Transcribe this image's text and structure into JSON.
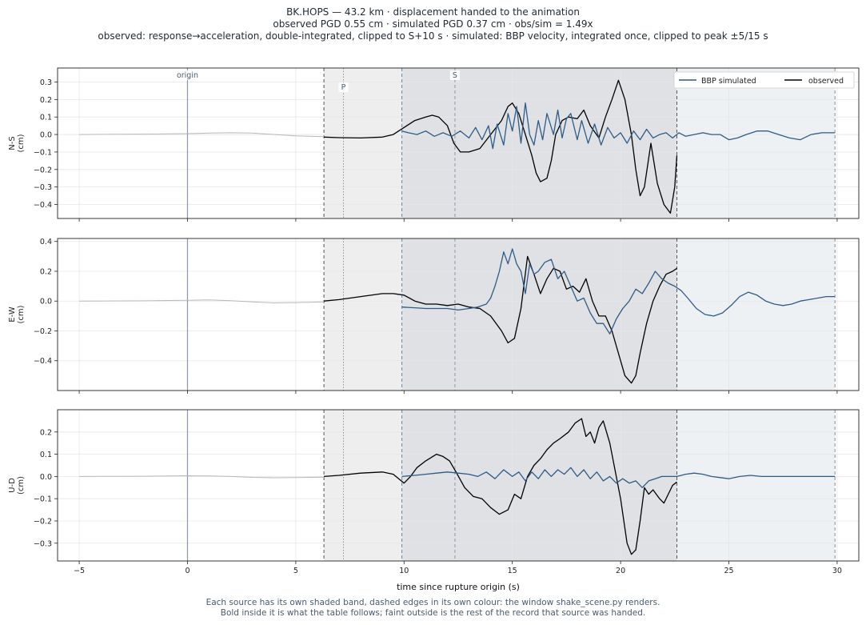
{
  "header": {
    "line1": "BK.HOPS  —  43.2 km   ·   displacement handed to the animation",
    "line2": "observed PGD 0.55 cm   ·   simulated PGD 0.37 cm   ·   obs/sim = 1.49x",
    "line3": "observed: response→acceleration, double-integrated, clipped to S+10 s   ·   simulated: BBP velocity, integrated once, clipped to peak ±5/15 s"
  },
  "footer": {
    "line1": "Each source has its own shaded band, dashed edges in its own colour: the window shake_scene.py renders.",
    "line2": "Bold inside it is what the table follows;   faint outside is the rest of the record that source was handed."
  },
  "colors": {
    "simulated": "#2f5b86",
    "observed": "#000000",
    "faint": "#b4b8bd",
    "band_observed": "#eeeeee",
    "band_overlap": "#dfe1e5",
    "band_simulated": "#eef1f4",
    "marker": "#8d97ab"
  },
  "chart_data": {
    "type": "line",
    "xlabel": "time since rupture origin (s)",
    "xlim": [
      -6,
      31
    ],
    "xticks": [
      -5,
      0,
      5,
      10,
      15,
      20,
      25,
      30
    ],
    "xtick_labels": [
      "−5",
      "0",
      "5",
      "10",
      "15",
      "20",
      "25",
      "30"
    ],
    "markers": [
      {
        "label": "origin",
        "t": 0
      },
      {
        "label": "P",
        "t": 7.2
      },
      {
        "label": "S",
        "t": 12.35
      }
    ],
    "windows": {
      "observed": [
        6.3,
        22.6
      ],
      "simulated": [
        9.9,
        29.9
      ]
    },
    "legend": {
      "position": "top-right",
      "entries": [
        "BBP simulated",
        "observed"
      ]
    },
    "panels": [
      {
        "ylabel": "N-S\n(cm)",
        "ylim": [
          -0.48,
          0.38
        ],
        "yticks": [
          0.3,
          0.2,
          0.1,
          0.0,
          -0.1,
          -0.2,
          -0.3,
          -0.4
        ],
        "ytick_labels": [
          "0.3",
          "0.2",
          "0.1",
          "0.0",
          "−0.1",
          "−0.2",
          "−0.3",
          "−0.4"
        ],
        "series": [
          {
            "name": "observed",
            "role": "faint",
            "x": [
              -5,
              -2,
              0,
              1,
              2,
              3,
              4,
              5,
              6.3
            ],
            "y": [
              0,
              0.002,
              0.005,
              0.008,
              0.01,
              0.008,
              0.0,
              -0.008,
              -0.012
            ]
          },
          {
            "name": "observed",
            "role": "main",
            "x": [
              6.3,
              7,
              8,
              9,
              9.5,
              10,
              10.5,
              11,
              11.3,
              11.6,
              12,
              12.3,
              12.6,
              13,
              13.5,
              14,
              14.5,
              14.8,
              15,
              15.3,
              15.6,
              15.9,
              16.1,
              16.3,
              16.6,
              16.8,
              17,
              17.3,
              17.6,
              18,
              18.3,
              18.6,
              19,
              19.3,
              19.6,
              19.9,
              20.2,
              20.5,
              20.7,
              20.9,
              21.1,
              21.4,
              21.7,
              22,
              22.3,
              22.5,
              22.6
            ],
            "y": [
              -0.015,
              -0.018,
              -0.02,
              -0.015,
              0.0,
              0.04,
              0.08,
              0.1,
              0.11,
              0.1,
              0.05,
              -0.05,
              -0.1,
              -0.1,
              -0.08,
              0.0,
              0.08,
              0.16,
              0.18,
              0.12,
              0.0,
              -0.12,
              -0.22,
              -0.27,
              -0.25,
              -0.15,
              0.0,
              0.08,
              0.1,
              0.09,
              0.14,
              0.05,
              -0.02,
              0.1,
              0.2,
              0.31,
              0.2,
              0.0,
              -0.2,
              -0.35,
              -0.3,
              -0.05,
              -0.28,
              -0.4,
              -0.45,
              -0.3,
              -0.12
            ]
          },
          {
            "name": "BBP simulated",
            "role": "main",
            "x": [
              9.9,
              10.2,
              10.6,
              11,
              11.4,
              11.8,
              12.2,
              12.6,
              13,
              13.3,
              13.6,
              13.9,
              14.1,
              14.3,
              14.6,
              14.8,
              15.0,
              15.2,
              15.4,
              15.6,
              15.8,
              16.0,
              16.2,
              16.4,
              16.6,
              16.9,
              17.1,
              17.3,
              17.5,
              17.7,
              18.0,
              18.2,
              18.5,
              18.8,
              19.1,
              19.4,
              19.7,
              20.0,
              20.3,
              20.6,
              20.9,
              21.2,
              21.5,
              21.8,
              22.1,
              22.4,
              22.7,
              23.0,
              23.4,
              23.8,
              24.2,
              24.6,
              25.0,
              25.4,
              25.8,
              26.3,
              26.8,
              27.3,
              27.8,
              28.3,
              28.8,
              29.3,
              29.9
            ],
            "y": [
              0.02,
              0.01,
              0.0,
              0.02,
              -0.01,
              0.01,
              -0.01,
              0.02,
              -0.02,
              0.04,
              -0.03,
              0.05,
              -0.08,
              0.06,
              -0.06,
              0.12,
              0.02,
              0.16,
              -0.05,
              0.18,
              0.0,
              -0.06,
              0.08,
              -0.03,
              0.12,
              0.0,
              0.14,
              -0.02,
              0.09,
              0.12,
              -0.03,
              0.08,
              -0.05,
              0.06,
              -0.06,
              0.04,
              -0.02,
              0.01,
              -0.05,
              0.02,
              -0.03,
              0.03,
              -0.02,
              0.0,
              0.01,
              -0.02,
              0.01,
              -0.01,
              0.0,
              0.01,
              0.0,
              0.0,
              -0.03,
              -0.02,
              0.0,
              0.02,
              0.02,
              0.0,
              -0.02,
              -0.03,
              0.0,
              0.01,
              0.01
            ]
          }
        ]
      },
      {
        "ylabel": "E-W\n(cm)",
        "ylim": [
          -0.6,
          0.42
        ],
        "yticks": [
          0.4,
          0.2,
          0.0,
          -0.2,
          -0.4
        ],
        "ytick_labels": [
          "0.4",
          "0.2",
          "0.0",
          "−0.2",
          "−0.4"
        ],
        "series": [
          {
            "name": "observed",
            "role": "faint",
            "x": [
              -5,
              -2,
              0,
              1,
              2,
              3,
              4,
              5,
              6.3
            ],
            "y": [
              0,
              0.002,
              0.005,
              0.008,
              0.003,
              -0.005,
              -0.012,
              -0.01,
              -0.005
            ]
          },
          {
            "name": "observed",
            "role": "main",
            "x": [
              6.3,
              7,
              8,
              9,
              9.5,
              10,
              10.5,
              11,
              11.5,
              12,
              12.5,
              13,
              13.5,
              14,
              14.5,
              14.8,
              15.1,
              15.4,
              15.7,
              16.0,
              16.3,
              16.6,
              16.9,
              17.2,
              17.5,
              17.8,
              18.1,
              18.4,
              18.7,
              19.0,
              19.3,
              19.6,
              19.9,
              20.2,
              20.5,
              20.7,
              20.9,
              21.2,
              21.5,
              21.8,
              22.1,
              22.4,
              22.6
            ],
            "y": [
              0.0,
              0.01,
              0.03,
              0.05,
              0.05,
              0.04,
              0.0,
              -0.02,
              -0.02,
              -0.03,
              -0.02,
              -0.04,
              -0.05,
              -0.1,
              -0.2,
              -0.28,
              -0.25,
              -0.05,
              0.3,
              0.18,
              0.05,
              0.15,
              0.22,
              0.2,
              0.08,
              0.1,
              0.06,
              0.15,
              0.0,
              -0.1,
              -0.1,
              -0.2,
              -0.35,
              -0.5,
              -0.55,
              -0.5,
              -0.35,
              -0.15,
              0.0,
              0.1,
              0.18,
              0.2,
              0.22
            ]
          },
          {
            "name": "BBP simulated",
            "role": "main",
            "x": [
              9.9,
              10.5,
              11.0,
              11.5,
              12.0,
              12.5,
              13.0,
              13.4,
              13.8,
              14.0,
              14.2,
              14.4,
              14.6,
              14.8,
              15.0,
              15.2,
              15.4,
              15.6,
              15.8,
              16.0,
              16.2,
              16.5,
              16.8,
              17.1,
              17.4,
              17.7,
              18.0,
              18.3,
              18.6,
              18.9,
              19.2,
              19.5,
              19.8,
              20.1,
              20.4,
              20.7,
              21.0,
              21.3,
              21.6,
              21.9,
              22.2,
              22.5,
              22.8,
              23.1,
              23.5,
              23.9,
              24.3,
              24.7,
              25.1,
              25.5,
              25.9,
              26.3,
              26.7,
              27.1,
              27.5,
              27.9,
              28.3,
              28.7,
              29.1,
              29.5,
              29.9
            ],
            "y": [
              -0.04,
              -0.045,
              -0.05,
              -0.05,
              -0.05,
              -0.06,
              -0.05,
              -0.04,
              -0.02,
              0.02,
              0.1,
              0.2,
              0.33,
              0.25,
              0.35,
              0.25,
              0.2,
              0.05,
              0.25,
              0.18,
              0.2,
              0.26,
              0.28,
              0.15,
              0.2,
              0.1,
              0.0,
              0.02,
              -0.08,
              -0.15,
              -0.15,
              -0.22,
              -0.12,
              -0.05,
              0.0,
              0.08,
              0.05,
              0.12,
              0.2,
              0.15,
              0.12,
              0.1,
              0.07,
              0.02,
              -0.05,
              -0.09,
              -0.1,
              -0.08,
              -0.03,
              0.03,
              0.06,
              0.04,
              0.0,
              -0.02,
              -0.03,
              -0.02,
              0.0,
              0.01,
              0.02,
              0.03,
              0.03
            ]
          }
        ]
      },
      {
        "ylabel": "U-D\n(cm)",
        "ylim": [
          -0.38,
          0.3
        ],
        "yticks": [
          0.2,
          0.1,
          0.0,
          -0.1,
          -0.2,
          -0.3
        ],
        "ytick_labels": [
          "0.2",
          "0.1",
          "0.0",
          "−0.1",
          "−0.2",
          "−0.3"
        ],
        "series": [
          {
            "name": "observed",
            "role": "faint",
            "x": [
              -5,
              -2,
              0,
              1,
              2,
              3,
              4,
              5,
              6.3
            ],
            "y": [
              0,
              0.001,
              0.003,
              0.002,
              0.0,
              -0.004,
              -0.006,
              -0.005,
              -0.003
            ]
          },
          {
            "name": "observed",
            "role": "main",
            "x": [
              6.3,
              7,
              8,
              9,
              9.5,
              10,
              10.3,
              10.6,
              11,
              11.5,
              11.8,
              12.1,
              12.4,
              12.8,
              13.2,
              13.6,
              14.0,
              14.4,
              14.8,
              15.1,
              15.4,
              15.7,
              16.0,
              16.3,
              16.6,
              16.9,
              17.2,
              17.6,
              17.9,
              18.2,
              18.4,
              18.6,
              18.8,
              19.0,
              19.2,
              19.5,
              19.8,
              20.0,
              20.3,
              20.5,
              20.7,
              20.9,
              21.1,
              21.3,
              21.5,
              21.8,
              22.0,
              22.2,
              22.4,
              22.6
            ],
            "y": [
              0.0,
              0.005,
              0.015,
              0.02,
              0.01,
              -0.03,
              0.0,
              0.04,
              0.07,
              0.1,
              0.09,
              0.07,
              0.02,
              -0.05,
              -0.09,
              -0.1,
              -0.14,
              -0.17,
              -0.15,
              -0.08,
              -0.1,
              0.0,
              0.05,
              0.08,
              0.12,
              0.15,
              0.17,
              0.2,
              0.24,
              0.26,
              0.18,
              0.2,
              0.15,
              0.22,
              0.25,
              0.15,
              0.0,
              -0.1,
              -0.3,
              -0.35,
              -0.33,
              -0.2,
              -0.05,
              -0.08,
              -0.06,
              -0.1,
              -0.12,
              -0.08,
              -0.04,
              -0.025
            ]
          },
          {
            "name": "BBP simulated",
            "role": "main",
            "x": [
              9.9,
              10.5,
              11.0,
              11.5,
              12.0,
              12.5,
              13.0,
              13.4,
              13.8,
              14.2,
              14.6,
              15.0,
              15.3,
              15.6,
              15.9,
              16.2,
              16.5,
              16.8,
              17.1,
              17.4,
              17.7,
              18.0,
              18.3,
              18.6,
              18.9,
              19.2,
              19.5,
              19.8,
              20.1,
              20.4,
              20.7,
              21.0,
              21.3,
              21.6,
              21.9,
              22.2,
              22.6,
              23.0,
              23.4,
              23.8,
              24.2,
              24.6,
              25.0,
              25.5,
              26.0,
              26.5,
              27.0,
              27.5,
              28.0,
              28.5,
              29.0,
              29.5,
              29.9
            ],
            "y": [
              0.0,
              0.005,
              0.01,
              0.015,
              0.02,
              0.015,
              0.01,
              0.0,
              0.02,
              -0.01,
              0.03,
              0.0,
              0.02,
              -0.02,
              0.02,
              -0.01,
              0.03,
              0.0,
              0.03,
              0.01,
              0.04,
              0.0,
              0.03,
              -0.01,
              0.02,
              -0.02,
              0.0,
              -0.03,
              -0.01,
              -0.03,
              -0.02,
              -0.05,
              -0.02,
              -0.01,
              0.0,
              0.0,
              0.0,
              0.01,
              0.015,
              0.01,
              0.0,
              -0.005,
              -0.01,
              0.0,
              0.005,
              0.0,
              0.0,
              0.0,
              0.0,
              0.0,
              0.0,
              0.0,
              0.0
            ]
          }
        ]
      }
    ]
  }
}
